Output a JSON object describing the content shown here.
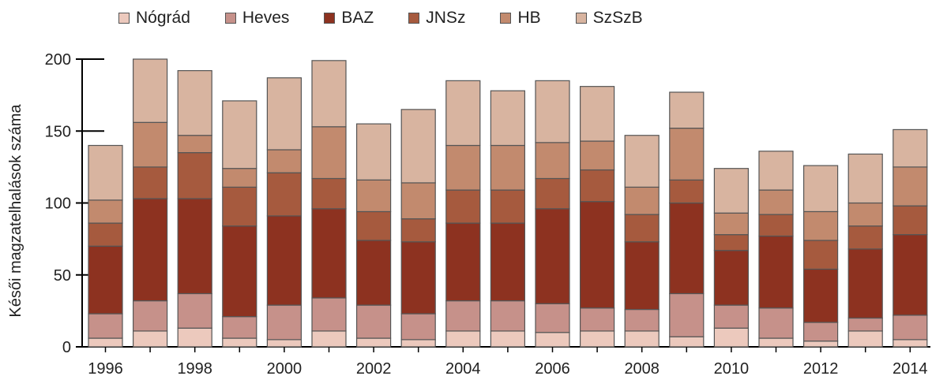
{
  "chart_data": {
    "type": "bar",
    "stacked": true,
    "ylabel": "Késői magzatelhalások száma",
    "ylim": [
      0,
      200
    ],
    "yticks": [
      0,
      50,
      100,
      150,
      200
    ],
    "x_tick_labels": [
      "1996",
      "1998",
      "2000",
      "2002",
      "2004",
      "2006",
      "2008",
      "2010",
      "2012",
      "2014"
    ],
    "categories": [
      1996,
      1997,
      1998,
      1999,
      2000,
      2001,
      2002,
      2003,
      2004,
      2005,
      2006,
      2007,
      2008,
      2009,
      2010,
      2011,
      2012,
      2013,
      2014
    ],
    "legend_position": "top",
    "series": [
      {
        "name": "Nógrád",
        "color": "#ecc9bd",
        "values": [
          6,
          11,
          13,
          6,
          5,
          11,
          6,
          5,
          11,
          11,
          10,
          11,
          11,
          7,
          13,
          6,
          4,
          11,
          5
        ]
      },
      {
        "name": "Heves",
        "color": "#c6918a",
        "values": [
          17,
          21,
          24,
          15,
          24,
          23,
          23,
          18,
          21,
          21,
          20,
          16,
          15,
          30,
          16,
          21,
          13,
          9,
          17
        ]
      },
      {
        "name": "BAZ",
        "color": "#8d3220",
        "values": [
          47,
          71,
          66,
          63,
          62,
          62,
          45,
          50,
          54,
          54,
          66,
          74,
          47,
          63,
          38,
          50,
          37,
          48,
          56
        ]
      },
      {
        "name": "JNSz",
        "color": "#a65a3e",
        "values": [
          16,
          22,
          32,
          27,
          30,
          21,
          20,
          16,
          23,
          23,
          21,
          22,
          19,
          16,
          11,
          15,
          20,
          16,
          20
        ]
      },
      {
        "name": "HB",
        "color": "#c28a6e",
        "values": [
          16,
          31,
          12,
          13,
          16,
          36,
          22,
          25,
          31,
          31,
          25,
          20,
          19,
          36,
          15,
          17,
          20,
          16,
          27
        ]
      },
      {
        "name": "SzSzB",
        "color": "#d8b4a0",
        "values": [
          38,
          44,
          45,
          47,
          50,
          46,
          39,
          51,
          45,
          38,
          43,
          38,
          36,
          25,
          31,
          27,
          32,
          34,
          26
        ]
      }
    ]
  }
}
